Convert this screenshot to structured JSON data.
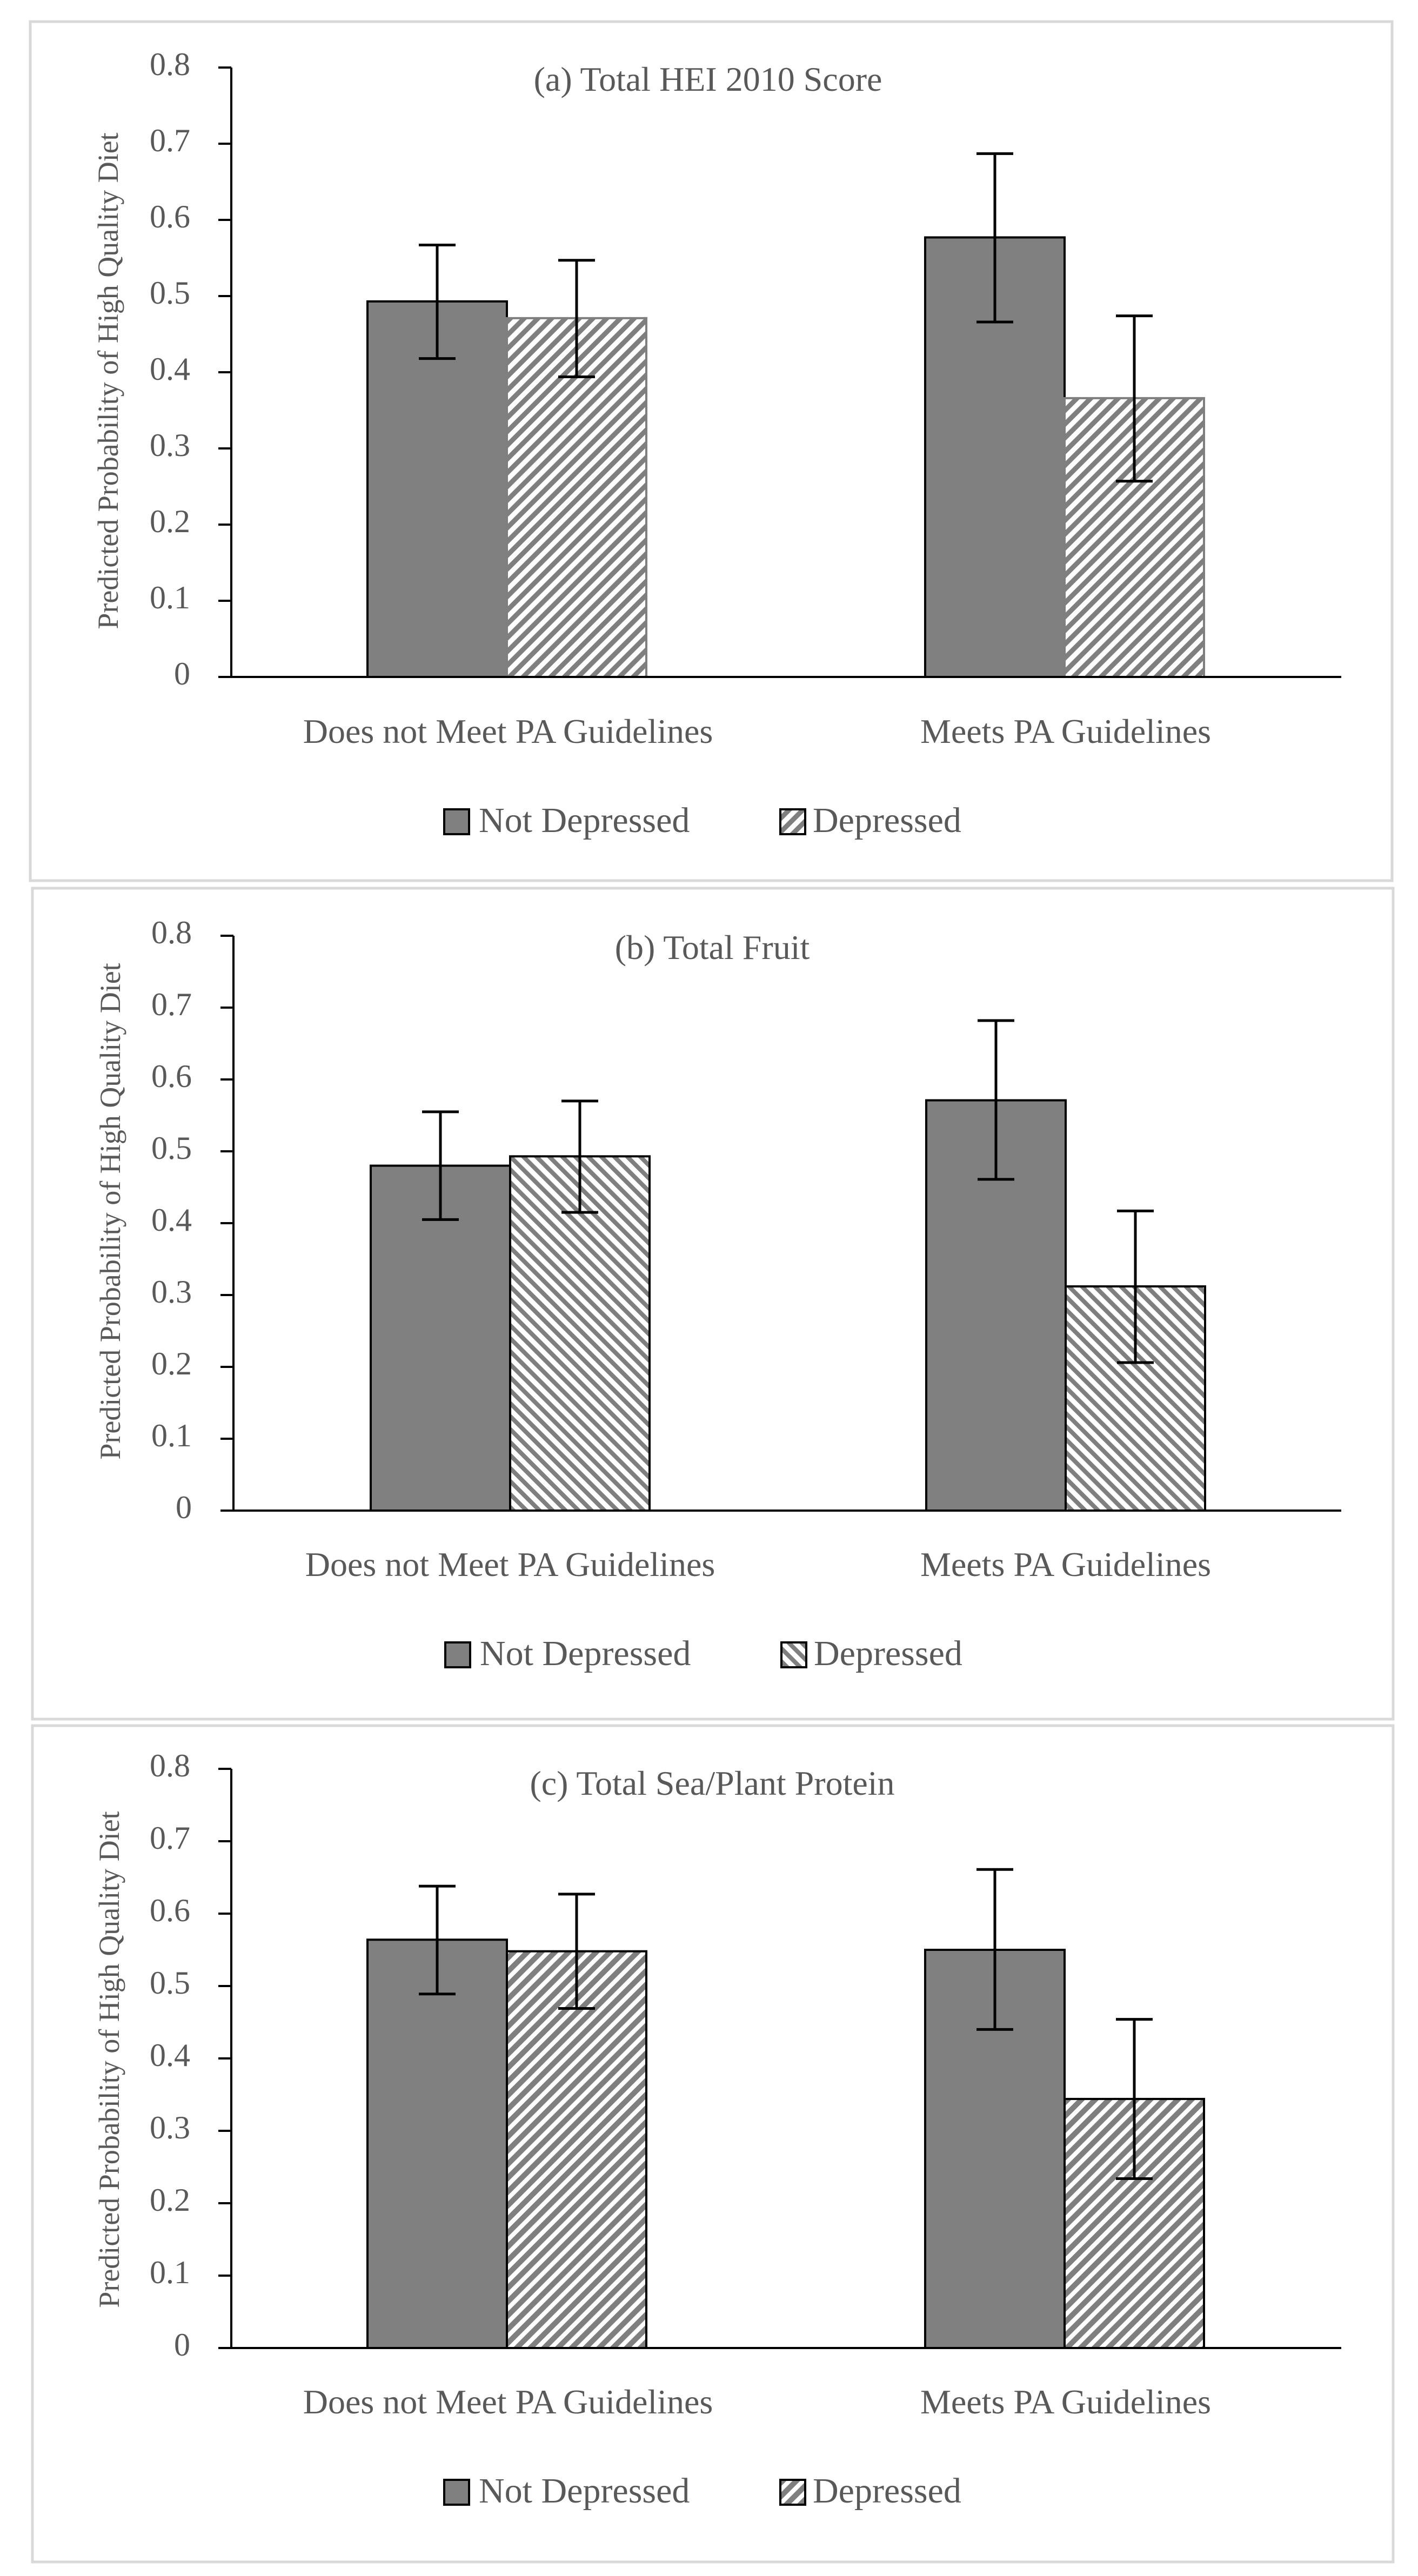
{
  "colors": {
    "not_depressed_fill": "#808080",
    "bar_stroke": "#000000",
    "axis": "#000000",
    "text": "#595959",
    "panel_border": "#d9d9d9",
    "hatch_dark": "#7f7f7f",
    "hatch_light": "#ffffff"
  },
  "chart_data": [
    {
      "type": "bar",
      "title": "(a) Total HEI 2010 Score",
      "xlabel": "",
      "ylabel": "Predicted Probability of High Quality Diet",
      "ylim": [
        0,
        0.8
      ],
      "yticks": [
        "0",
        "0.1",
        "0.2",
        "0.3",
        "0.4",
        "0.5",
        "0.6",
        "0.7",
        "0.8"
      ],
      "categories": [
        "Does not Meet PA Guidelines",
        "Meets PA Guidelines"
      ],
      "series": [
        {
          "name": "Not Depressed",
          "values": [
            0.493,
            0.577
          ],
          "error_low": [
            0.418,
            0.466
          ],
          "error_high": [
            0.567,
            0.687
          ]
        },
        {
          "name": "Depressed",
          "values": [
            0.471,
            0.366
          ],
          "error_low": [
            0.394,
            0.257
          ],
          "error_high": [
            0.547,
            0.474
          ]
        }
      ],
      "legend_position": "bottom"
    },
    {
      "type": "bar",
      "title": "(b) Total Fruit",
      "xlabel": "",
      "ylabel": "Predicted Probability of High Quality Diet",
      "ylim": [
        0,
        0.8
      ],
      "yticks": [
        "0",
        "0.1",
        "0.2",
        "0.3",
        "0.4",
        "0.5",
        "0.6",
        "0.7",
        "0.8"
      ],
      "categories": [
        "Does not Meet PA Guidelines",
        "Meets PA Guidelines"
      ],
      "series": [
        {
          "name": "Not Depressed",
          "values": [
            0.48,
            0.571
          ],
          "error_low": [
            0.405,
            0.461
          ],
          "error_high": [
            0.555,
            0.682
          ]
        },
        {
          "name": "Depressed",
          "values": [
            0.493,
            0.312
          ],
          "error_low": [
            0.415,
            0.206
          ],
          "error_high": [
            0.57,
            0.417
          ]
        }
      ],
      "legend_position": "bottom"
    },
    {
      "type": "bar",
      "title": "(c) Total Sea/Plant Protein",
      "xlabel": "",
      "ylabel": "Predicted Probability of High Quality Diet",
      "ylim": [
        0,
        0.8
      ],
      "yticks": [
        "0",
        "0.1",
        "0.2",
        "0.3",
        "0.4",
        "0.5",
        "0.6",
        "0.7",
        "0.8"
      ],
      "categories": [
        "Does not Meet PA Guidelines",
        "Meets PA Guidelines"
      ],
      "series": [
        {
          "name": "Not Depressed",
          "values": [
            0.564,
            0.55
          ],
          "error_low": [
            0.489,
            0.44
          ],
          "error_high": [
            0.638,
            0.661
          ]
        },
        {
          "name": "Depressed",
          "values": [
            0.548,
            0.344
          ],
          "error_low": [
            0.469,
            0.234
          ],
          "error_high": [
            0.627,
            0.454
          ]
        }
      ],
      "legend_position": "bottom"
    }
  ]
}
